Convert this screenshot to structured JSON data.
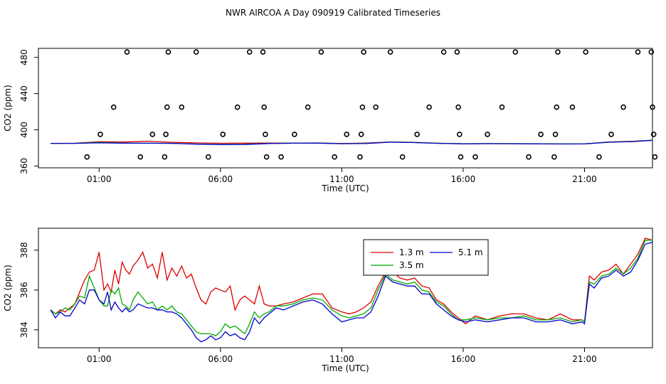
{
  "title": "NWR AIRCOA A  Day 090919  Calibrated Timeseries",
  "chart_data": [
    {
      "type": "scatter",
      "xlabel": "Time (UTC)",
      "ylabel": "CO2 (ppm)",
      "xlim": [
        -1.5,
        23.8
      ],
      "ylim": [
        358,
        490
      ],
      "x_ticks": [
        {
          "v": 1,
          "label": "01:00"
        },
        {
          "v": 6,
          "label": "06:00"
        },
        {
          "v": 11,
          "label": "11:00"
        },
        {
          "v": 16,
          "label": "16:00"
        },
        {
          "v": 21,
          "label": "21:00"
        }
      ],
      "y_ticks": [
        {
          "v": 360,
          "label": "360"
        },
        {
          "v": 400,
          "label": "400"
        },
        {
          "v": 440,
          "label": "440"
        },
        {
          "v": 480,
          "label": "480"
        }
      ],
      "reference_points": [
        {
          "x": 0.5,
          "y": 370
        },
        {
          "x": 1.05,
          "y": 395
        },
        {
          "x": 1.6,
          "y": 425
        },
        {
          "x": 2.15,
          "y": 486
        },
        {
          "x": 2.7,
          "y": 370
        },
        {
          "x": 3.2,
          "y": 395
        },
        {
          "x": 3.7,
          "y": 370
        },
        {
          "x": 3.75,
          "y": 395
        },
        {
          "x": 3.8,
          "y": 425
        },
        {
          "x": 3.85,
          "y": 486
        },
        {
          "x": 4.4,
          "y": 425
        },
        {
          "x": 5.0,
          "y": 486
        },
        {
          "x": 5.5,
          "y": 370
        },
        {
          "x": 6.1,
          "y": 395
        },
        {
          "x": 6.7,
          "y": 425
        },
        {
          "x": 7.2,
          "y": 486
        },
        {
          "x": 7.75,
          "y": 486
        },
        {
          "x": 7.8,
          "y": 425
        },
        {
          "x": 7.85,
          "y": 395
        },
        {
          "x": 7.9,
          "y": 370
        },
        {
          "x": 8.5,
          "y": 370
        },
        {
          "x": 9.05,
          "y": 395
        },
        {
          "x": 9.6,
          "y": 425
        },
        {
          "x": 10.15,
          "y": 486
        },
        {
          "x": 10.7,
          "y": 370
        },
        {
          "x": 11.2,
          "y": 395
        },
        {
          "x": 11.75,
          "y": 370
        },
        {
          "x": 11.8,
          "y": 395
        },
        {
          "x": 11.85,
          "y": 425
        },
        {
          "x": 11.9,
          "y": 486
        },
        {
          "x": 12.4,
          "y": 425
        },
        {
          "x": 13.0,
          "y": 486
        },
        {
          "x": 13.5,
          "y": 370
        },
        {
          "x": 14.1,
          "y": 395
        },
        {
          "x": 14.6,
          "y": 425
        },
        {
          "x": 15.2,
          "y": 486
        },
        {
          "x": 15.75,
          "y": 486
        },
        {
          "x": 15.8,
          "y": 425
        },
        {
          "x": 15.85,
          "y": 395
        },
        {
          "x": 15.9,
          "y": 370
        },
        {
          "x": 16.5,
          "y": 370
        },
        {
          "x": 17.0,
          "y": 395
        },
        {
          "x": 17.6,
          "y": 425
        },
        {
          "x": 18.15,
          "y": 486
        },
        {
          "x": 18.7,
          "y": 370
        },
        {
          "x": 19.2,
          "y": 395
        },
        {
          "x": 19.75,
          "y": 370
        },
        {
          "x": 19.8,
          "y": 395
        },
        {
          "x": 19.85,
          "y": 425
        },
        {
          "x": 19.9,
          "y": 486
        },
        {
          "x": 20.5,
          "y": 425
        },
        {
          "x": 21.05,
          "y": 486
        },
        {
          "x": 21.6,
          "y": 370
        },
        {
          "x": 22.1,
          "y": 395
        },
        {
          "x": 22.6,
          "y": 425
        },
        {
          "x": 23.2,
          "y": 486
        },
        {
          "x": 23.75,
          "y": 486
        },
        {
          "x": 23.8,
          "y": 425
        },
        {
          "x": 23.85,
          "y": 395
        },
        {
          "x": 23.9,
          "y": 370
        }
      ],
      "series": [
        {
          "color": "#dd0000",
          "x": [
            -1,
            0,
            1,
            2,
            3,
            4,
            5,
            6,
            7,
            8,
            9,
            10,
            11,
            12,
            13,
            14,
            15,
            16,
            17,
            18,
            19,
            20,
            21,
            22,
            23,
            23.8
          ],
          "values": [
            385,
            385.2,
            386.8,
            386.5,
            387.5,
            386.2,
            385.6,
            385.1,
            385.3,
            385.4,
            385.3,
            385.5,
            384.9,
            385.4,
            386.5,
            386.1,
            385.2,
            384.6,
            384.7,
            384.7,
            384.6,
            384.4,
            384.5,
            386.6,
            387.3,
            388.6
          ]
        },
        {
          "color": "#00aa00",
          "x": [
            -1,
            0,
            1,
            2,
            3,
            4,
            5,
            6,
            7,
            8,
            9,
            10,
            11,
            12,
            13,
            14,
            15,
            16,
            17,
            18,
            19,
            20,
            21,
            22,
            23,
            23.8
          ],
          "values": [
            385,
            385.1,
            386.1,
            385.4,
            385.3,
            385.1,
            384.3,
            383.9,
            384.1,
            384.9,
            385.3,
            385.4,
            384.7,
            385.0,
            386.5,
            386.0,
            385.1,
            384.6,
            384.8,
            384.7,
            384.6,
            384.4,
            384.5,
            386.4,
            387.1,
            388.5
          ]
        },
        {
          "color": "#0000cc",
          "x": [
            -1,
            0,
            1,
            2,
            3,
            4,
            5,
            6,
            7,
            8,
            9,
            10,
            11,
            12,
            13,
            14,
            15,
            16,
            17,
            18,
            19,
            20,
            21,
            22,
            23,
            23.8
          ],
          "values": [
            385,
            385.0,
            385.6,
            385.3,
            385.2,
            385.0,
            384.2,
            383.7,
            383.8,
            384.9,
            385.2,
            385.3,
            384.6,
            384.9,
            386.4,
            385.9,
            385.0,
            384.5,
            384.7,
            384.6,
            384.5,
            384.3,
            384.4,
            386.3,
            387.0,
            388.4
          ]
        }
      ]
    },
    {
      "type": "line",
      "xlabel": "Time (UTC)",
      "ylabel": "CO2 (ppm)",
      "xlim": [
        -1.5,
        23.8
      ],
      "ylim": [
        383.1,
        389.1
      ],
      "x_ticks": [
        {
          "v": 1,
          "label": "01:00"
        },
        {
          "v": 6,
          "label": "06:00"
        },
        {
          "v": 11,
          "label": "11:00"
        },
        {
          "v": 16,
          "label": "16:00"
        },
        {
          "v": 21,
          "label": "21:00"
        }
      ],
      "y_ticks": [
        {
          "v": 384,
          "label": "384"
        },
        {
          "v": 386,
          "label": "386"
        },
        {
          "v": 388,
          "label": "388"
        }
      ],
      "legend": "top-center",
      "series": [
        {
          "name": "1.3 m",
          "color": "#dd0000",
          "x": [
            -1,
            -0.8,
            -0.6,
            -0.4,
            -0.2,
            0,
            0.2,
            0.4,
            0.6,
            0.8,
            1.0,
            1.2,
            1.35,
            1.5,
            1.65,
            1.8,
            1.95,
            2.1,
            2.25,
            2.4,
            2.6,
            2.8,
            3.0,
            3.2,
            3.4,
            3.6,
            3.8,
            4.0,
            4.2,
            4.4,
            4.6,
            4.8,
            5.0,
            5.2,
            5.4,
            5.6,
            5.8,
            6.0,
            6.2,
            6.4,
            6.6,
            6.8,
            7.0,
            7.2,
            7.4,
            7.6,
            7.8,
            8.0,
            8.3,
            8.6,
            9.0,
            9.4,
            9.8,
            10.2,
            10.6,
            11.0,
            11.3,
            11.6,
            11.9,
            12.2,
            12.5,
            12.8,
            13.1,
            13.4,
            13.7,
            14.0,
            14.3,
            14.6,
            14.9,
            15.2,
            15.5,
            15.8,
            16.1,
            16.5,
            17.0,
            17.5,
            18.0,
            18.5,
            19.0,
            19.5,
            20.0,
            20.5,
            20.9,
            21.0,
            21.2,
            21.4,
            21.7,
            22.0,
            22.3,
            22.6,
            22.9,
            23.2,
            23.5,
            23.8
          ],
          "values": [
            385.0,
            384.8,
            385.0,
            384.9,
            385.1,
            385.3,
            385.9,
            386.5,
            386.9,
            387.0,
            387.9,
            386.0,
            386.3,
            385.9,
            387.0,
            386.3,
            387.4,
            387.0,
            386.8,
            387.2,
            387.5,
            387.9,
            387.1,
            387.3,
            386.6,
            387.9,
            386.5,
            387.1,
            386.7,
            387.2,
            386.6,
            386.8,
            386.1,
            385.5,
            385.3,
            385.9,
            386.1,
            386.0,
            385.9,
            386.2,
            385.0,
            385.5,
            385.7,
            385.5,
            385.3,
            386.2,
            385.3,
            385.2,
            385.2,
            385.3,
            385.4,
            385.6,
            385.8,
            385.8,
            385.1,
            384.9,
            384.8,
            384.9,
            385.1,
            385.4,
            386.2,
            386.9,
            386.9,
            386.6,
            386.5,
            386.6,
            386.2,
            386.1,
            385.5,
            385.3,
            384.9,
            384.6,
            384.3,
            384.7,
            384.5,
            384.7,
            384.8,
            384.8,
            384.6,
            384.5,
            384.8,
            384.5,
            384.5,
            384.4,
            386.7,
            386.5,
            386.9,
            387.0,
            387.3,
            386.8,
            387.3,
            387.8,
            388.6,
            388.5
          ]
        },
        {
          "name": "3.5 m",
          "color": "#00aa00",
          "x": [
            -1,
            -0.8,
            -0.6,
            -0.4,
            -0.2,
            0,
            0.2,
            0.4,
            0.6,
            0.8,
            1.0,
            1.2,
            1.35,
            1.5,
            1.65,
            1.8,
            1.95,
            2.1,
            2.25,
            2.4,
            2.6,
            2.8,
            3.0,
            3.2,
            3.4,
            3.6,
            3.8,
            4.0,
            4.2,
            4.4,
            4.6,
            4.8,
            5.0,
            5.2,
            5.4,
            5.6,
            5.8,
            6.0,
            6.2,
            6.4,
            6.6,
            6.8,
            7.0,
            7.2,
            7.4,
            7.6,
            7.8,
            8.0,
            8.3,
            8.6,
            9.0,
            9.4,
            9.8,
            10.2,
            10.6,
            11.0,
            11.3,
            11.6,
            11.9,
            12.2,
            12.5,
            12.8,
            13.1,
            13.4,
            13.7,
            14.0,
            14.3,
            14.6,
            14.9,
            15.2,
            15.5,
            15.8,
            16.1,
            16.5,
            17.0,
            17.5,
            18.0,
            18.5,
            19.0,
            19.5,
            20.0,
            20.5,
            20.9,
            21.0,
            21.2,
            21.4,
            21.7,
            22.0,
            22.3,
            22.6,
            22.9,
            23.2,
            23.5,
            23.8
          ],
          "values": [
            385.0,
            384.8,
            384.9,
            385.1,
            385.0,
            385.3,
            385.7,
            385.6,
            386.7,
            386.1,
            385.5,
            385.2,
            385.2,
            386.0,
            385.8,
            386.1,
            385.3,
            385.2,
            385.0,
            385.5,
            385.9,
            385.6,
            385.3,
            385.4,
            385.0,
            385.2,
            385.0,
            385.2,
            384.9,
            384.8,
            384.5,
            384.2,
            383.9,
            383.8,
            383.8,
            383.8,
            383.7,
            383.9,
            384.3,
            384.1,
            384.2,
            384.0,
            383.8,
            384.3,
            384.9,
            384.6,
            384.8,
            384.9,
            385.2,
            385.2,
            385.3,
            385.5,
            385.6,
            385.5,
            385.0,
            384.7,
            384.6,
            384.7,
            384.8,
            385.1,
            386.0,
            386.8,
            386.5,
            386.4,
            386.3,
            386.4,
            386.0,
            385.9,
            385.4,
            385.2,
            384.8,
            384.5,
            384.5,
            384.6,
            384.5,
            384.6,
            384.6,
            384.7,
            384.5,
            384.5,
            384.6,
            384.4,
            384.5,
            384.4,
            386.4,
            386.3,
            386.7,
            386.8,
            387.1,
            386.8,
            387.1,
            387.6,
            388.5,
            388.5
          ]
        },
        {
          "name": "5.1 m",
          "color": "#0000cc",
          "x": [
            -1,
            -0.8,
            -0.6,
            -0.4,
            -0.2,
            0,
            0.2,
            0.4,
            0.6,
            0.8,
            1.0,
            1.2,
            1.35,
            1.5,
            1.65,
            1.8,
            1.95,
            2.1,
            2.25,
            2.4,
            2.6,
            2.8,
            3.0,
            3.2,
            3.4,
            3.6,
            3.8,
            4.0,
            4.2,
            4.4,
            4.6,
            4.8,
            5.0,
            5.2,
            5.4,
            5.6,
            5.8,
            6.0,
            6.2,
            6.4,
            6.6,
            6.8,
            7.0,
            7.2,
            7.4,
            7.6,
            7.8,
            8.0,
            8.3,
            8.6,
            9.0,
            9.4,
            9.8,
            10.2,
            10.6,
            11.0,
            11.3,
            11.6,
            11.9,
            12.2,
            12.5,
            12.8,
            13.1,
            13.4,
            13.7,
            14.0,
            14.3,
            14.6,
            14.9,
            15.2,
            15.5,
            15.8,
            16.1,
            16.5,
            17.0,
            17.5,
            18.0,
            18.5,
            19.0,
            19.5,
            20.0,
            20.5,
            20.9,
            21.0,
            21.2,
            21.4,
            21.7,
            22.0,
            22.3,
            22.6,
            22.9,
            23.2,
            23.5,
            23.8
          ],
          "values": [
            385.0,
            384.6,
            384.9,
            384.7,
            384.7,
            385.1,
            385.5,
            385.3,
            386.0,
            386.0,
            385.5,
            385.3,
            385.9,
            385.0,
            385.4,
            385.1,
            384.9,
            385.1,
            384.9,
            385.0,
            385.3,
            385.2,
            385.1,
            385.1,
            385.0,
            385.0,
            384.9,
            384.9,
            384.8,
            384.6,
            384.3,
            384.0,
            383.6,
            383.4,
            383.5,
            383.7,
            383.5,
            383.6,
            383.9,
            383.7,
            383.8,
            383.6,
            383.5,
            383.9,
            384.6,
            384.3,
            384.6,
            384.8,
            385.1,
            385.0,
            385.2,
            385.4,
            385.5,
            385.3,
            384.8,
            384.4,
            384.5,
            384.6,
            384.6,
            384.9,
            385.7,
            386.7,
            386.4,
            386.3,
            386.2,
            386.2,
            385.8,
            385.8,
            385.3,
            385.0,
            384.7,
            384.5,
            384.4,
            384.5,
            384.4,
            384.5,
            384.6,
            384.6,
            384.4,
            384.4,
            384.5,
            384.3,
            384.4,
            384.3,
            386.3,
            386.1,
            386.6,
            386.7,
            387.0,
            386.7,
            386.9,
            387.5,
            388.3,
            388.4
          ]
        }
      ]
    }
  ]
}
